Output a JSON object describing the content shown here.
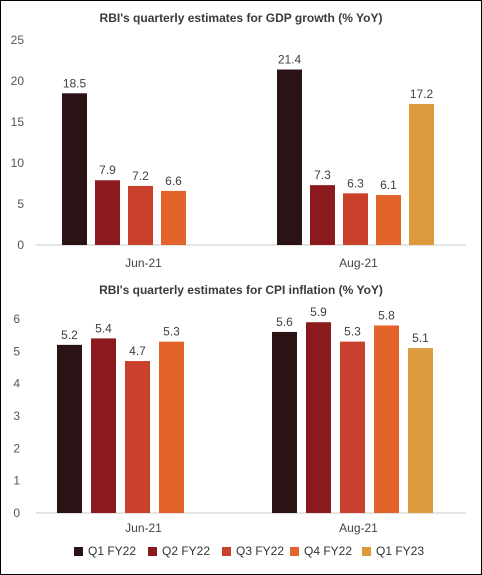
{
  "chart_data": [
    {
      "type": "bar",
      "title": "RBI's quarterly estimates for GDP growth (% YoY)",
      "categories": [
        "Jun-21",
        "Aug-21"
      ],
      "ylim": [
        0,
        25
      ],
      "yticks": [
        0,
        5,
        10,
        15,
        20,
        25
      ],
      "grid": false,
      "series": [
        {
          "name": "Q1 FY22",
          "values": [
            18.5,
            21.4
          ]
        },
        {
          "name": "Q2 FY22",
          "values": [
            7.9,
            7.3
          ]
        },
        {
          "name": "Q3 FY22",
          "values": [
            7.2,
            6.3
          ]
        },
        {
          "name": "Q4 FY22",
          "values": [
            6.6,
            6.1
          ]
        },
        {
          "name": "Q1 FY23",
          "values": [
            null,
            17.2
          ]
        }
      ]
    },
    {
      "type": "bar",
      "title": "RBI's quarterly estimates for CPI inflation (% YoY)",
      "categories": [
        "Jun-21",
        "Aug-21"
      ],
      "ylim": [
        0,
        6
      ],
      "yticks": [
        0,
        1,
        2,
        3,
        4,
        5,
        6
      ],
      "grid": false,
      "series": [
        {
          "name": "Q1 FY22",
          "values": [
            5.2,
            5.6
          ]
        },
        {
          "name": "Q2 FY22",
          "values": [
            5.4,
            5.9
          ]
        },
        {
          "name": "Q3 FY22",
          "values": [
            4.7,
            5.3
          ]
        },
        {
          "name": "Q4 FY22",
          "values": [
            5.3,
            5.8
          ]
        },
        {
          "name": "Q1 FY23",
          "values": [
            null,
            5.1
          ]
        }
      ]
    }
  ],
  "colors": [
    "#2a1215",
    "#8b1a1e",
    "#c9402c",
    "#e3642a",
    "#dd9a3c"
  ],
  "legend": {
    "position": "bottom",
    "items": [
      "Q1 FY22",
      "Q2 FY22",
      "Q3 FY22",
      "Q4 FY22",
      "Q1 FY23"
    ]
  }
}
